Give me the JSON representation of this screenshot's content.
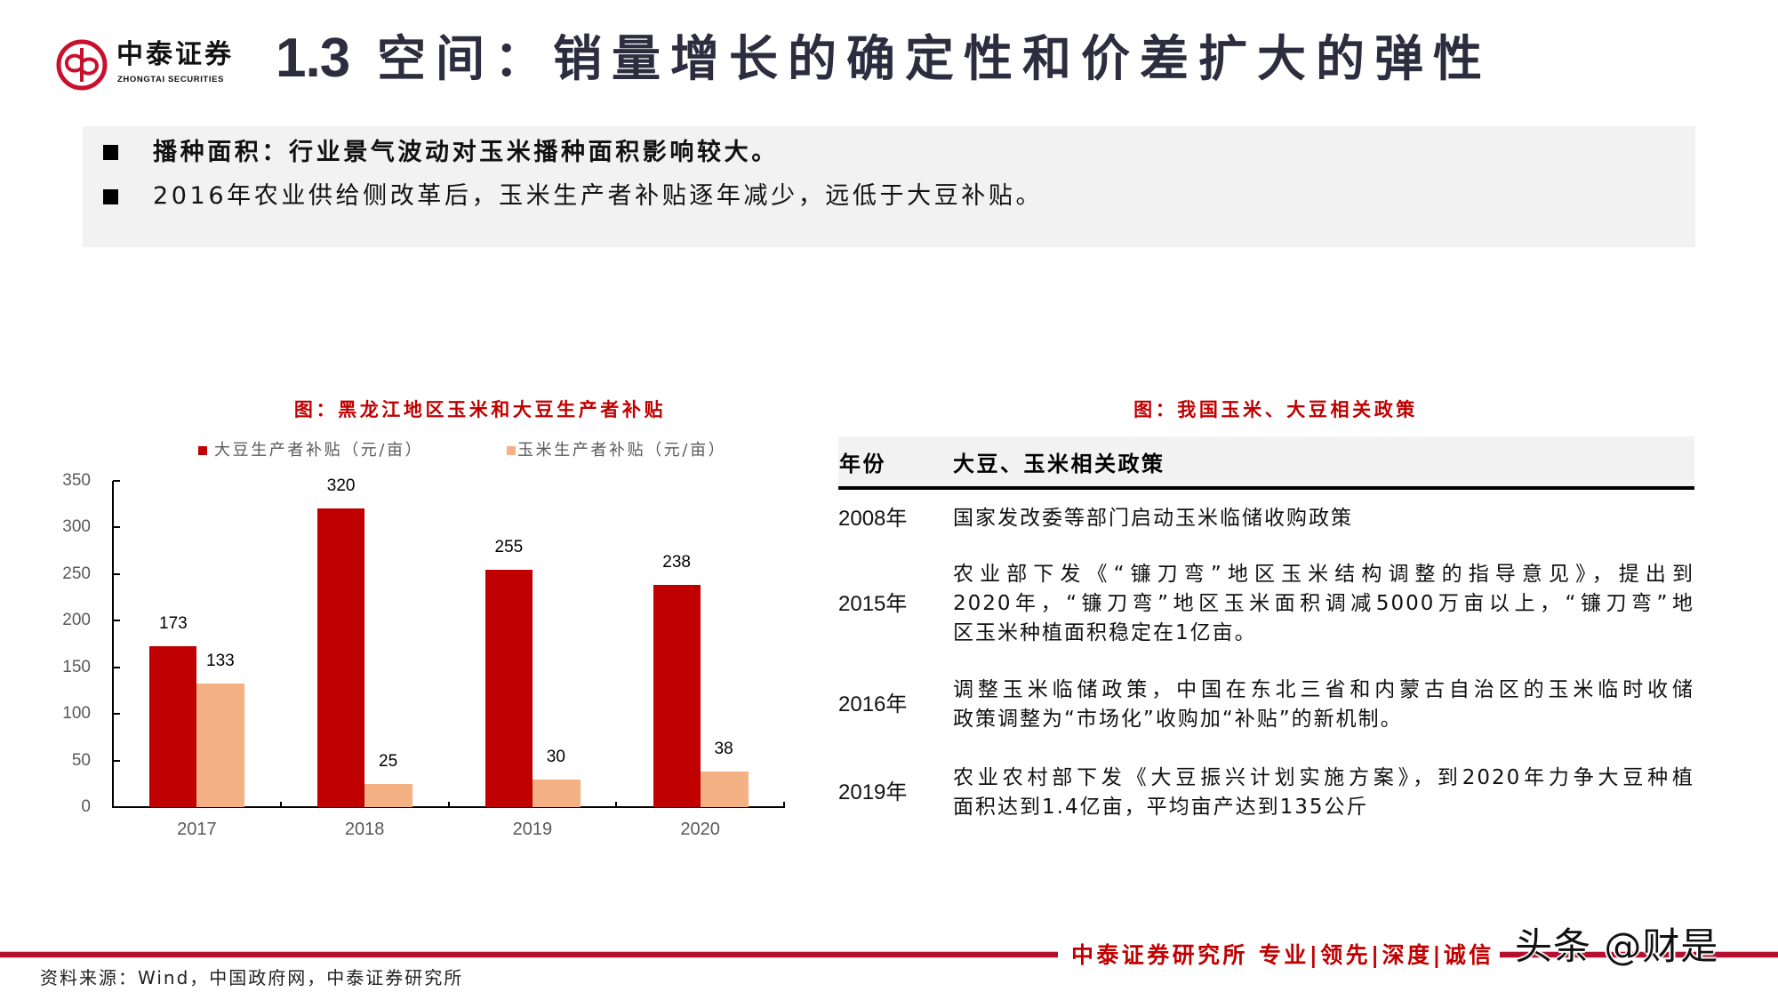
{
  "header": {
    "logo": {
      "name_cn": "中泰证券",
      "name_en": "ZHONGTAI SECURITIES"
    },
    "title_number": "1.3",
    "title_text": "空间：销量增长的确定性和价差扩大的弹性"
  },
  "summary": {
    "bullets": [
      {
        "text": "播种面积：行业景气波动对玉米播种面积影响较大。",
        "bold": true
      },
      {
        "text": "2016年农业供给侧改革后，玉米生产者补贴逐年减少，远低于大豆补贴。",
        "bold": false
      }
    ]
  },
  "chart_data": {
    "type": "bar",
    "title": "图：黑龙江地区玉米和大豆生产者补贴",
    "categories": [
      "2017",
      "2018",
      "2019",
      "2020"
    ],
    "series": [
      {
        "name": "大豆生产者补贴（元/亩）",
        "color": "#C00000",
        "values": [
          173,
          320,
          255,
          238
        ]
      },
      {
        "name": "玉米生产者补贴（元/亩）",
        "color": "#F4B183",
        "values": [
          133,
          25,
          30,
          38
        ]
      }
    ],
    "xlabel": "",
    "ylabel": "",
    "ylim": [
      0,
      350
    ],
    "yticks": [
      0,
      50,
      100,
      150,
      200,
      250,
      300,
      350
    ],
    "grid": false,
    "legend_position": "top",
    "data_labels": true
  },
  "policy_table": {
    "title": "图：我国玉米、大豆相关政策",
    "columns": [
      "年份",
      "大豆、玉米相关政策"
    ],
    "rows": [
      {
        "year": "2008年",
        "lines": [
          "国家发改委等部门启动玉米临储收购政策"
        ]
      },
      {
        "year": "2015年",
        "lines": [
          "农业部下发《“镰刀弯”地区玉米结构调整的指导意见》，提出到",
          "2020年，“镰刀弯”地区玉米面积调减5000万亩以上，“镰刀弯”地",
          "区玉米种植面积稳定在1亿亩。"
        ]
      },
      {
        "year": "2016年",
        "lines": [
          "调整玉米临储政策，中国在东北三省和内蒙古自治区的玉米临时收储",
          "政策调整为“市场化”收购加“补贴”的新机制。"
        ]
      },
      {
        "year": "2019年",
        "lines": [
          "农业农村部下发《大豆振兴计划实施方案》，到2020年力争大豆种植",
          "面积达到1.4亿亩，平均亩产达到135公斤"
        ]
      }
    ]
  },
  "footer": {
    "slogan": "中泰证券研究所 专业|领先|深度|诚信",
    "watermark": "头条 @财是",
    "source": "资料来源：Wind，中国政府网，中泰证券研究所"
  },
  "colors": {
    "brand_red": "#C8102E",
    "title_navy": "#2E2D3F",
    "chart_title_red": "#C00000",
    "panel_gray": "#F2F2F2",
    "footer_line": "#B5102F"
  }
}
